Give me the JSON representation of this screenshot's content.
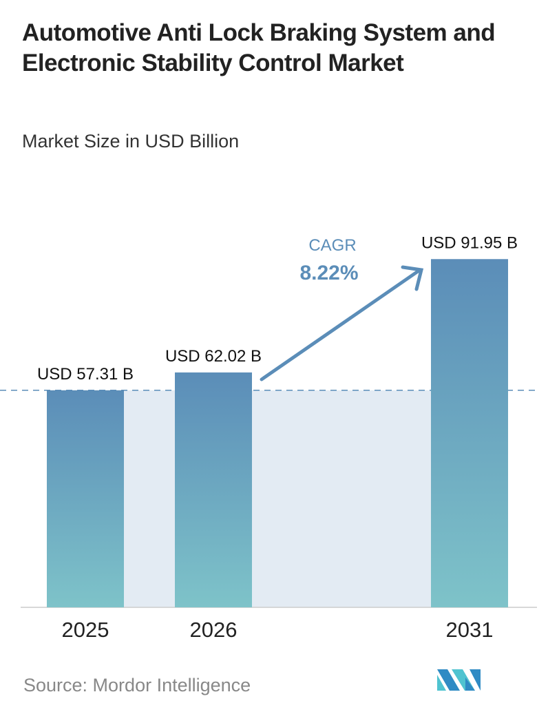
{
  "chart_data": {
    "type": "bar",
    "title": "Automotive Anti Lock Braking System and Electronic Stability Control Market",
    "subtitle": "Market Size in USD Billion",
    "categories": [
      "2025",
      "2026",
      "2031"
    ],
    "values": [
      57.31,
      62.02,
      91.95
    ],
    "data_labels": [
      "USD 57.31 B",
      "USD 62.02 B",
      "USD 91.95 B"
    ],
    "ylim": [
      0,
      95
    ],
    "grid": false,
    "reference_line": {
      "value": 57.31,
      "style": "dashed"
    },
    "annotation": {
      "label": "CAGR",
      "value": "8.22%"
    },
    "colors": {
      "bar_top": "#5b8db8",
      "bar_bottom": "#7ec3c9",
      "annotation": "#5b8db8",
      "shade": "#e3ebf3"
    }
  },
  "source": "Source:  Mordor Intelligence",
  "logo": {
    "text": "Mordor Intelligence",
    "icon": "mordor-intelligence-logo"
  }
}
